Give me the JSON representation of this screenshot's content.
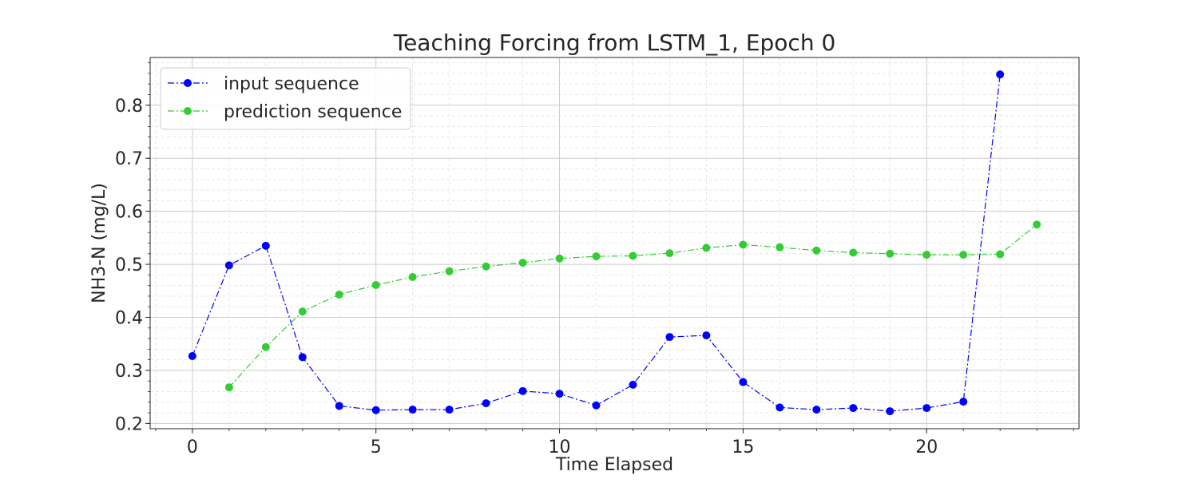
{
  "chart_data": {
    "type": "line",
    "title": "Teaching Forcing from LSTM_1, Epoch 0",
    "xlabel": "Time Elapsed",
    "ylabel": "NH3-N (mg/L)",
    "xlim": [
      -1.15,
      24.15
    ],
    "ylim": [
      0.19,
      0.89
    ],
    "x_ticks": [
      0,
      5,
      10,
      15,
      20
    ],
    "y_ticks": [
      0.2,
      0.3,
      0.4,
      0.5,
      0.6,
      0.7,
      0.8
    ],
    "x_tick_labels": [
      "0",
      "5",
      "10",
      "15",
      "20"
    ],
    "y_tick_labels": [
      "0.2",
      "0.3",
      "0.4",
      "0.5",
      "0.6",
      "0.7",
      "0.8"
    ],
    "grid": true,
    "minor_grid": true,
    "legend_position": "top-left",
    "series": [
      {
        "name": "input sequence",
        "color": "#0000ff",
        "line_style": "dashdot",
        "marker": "circle",
        "x": [
          0,
          1,
          2,
          3,
          4,
          5,
          6,
          7,
          8,
          9,
          10,
          11,
          12,
          13,
          14,
          15,
          16,
          17,
          18,
          19,
          20,
          21,
          22
        ],
        "y": [
          0.327,
          0.498,
          0.535,
          0.325,
          0.233,
          0.225,
          0.226,
          0.226,
          0.238,
          0.261,
          0.256,
          0.234,
          0.273,
          0.363,
          0.366,
          0.278,
          0.23,
          0.226,
          0.229,
          0.223,
          0.229,
          0.241,
          0.858
        ]
      },
      {
        "name": "prediction sequence",
        "color": "#32cd32",
        "line_style": "dashdot",
        "marker": "circle",
        "x": [
          1,
          2,
          3,
          4,
          5,
          6,
          7,
          8,
          9,
          10,
          11,
          12,
          13,
          14,
          15,
          16,
          17,
          18,
          19,
          20,
          21,
          22,
          23
        ],
        "y": [
          0.268,
          0.344,
          0.411,
          0.443,
          0.461,
          0.476,
          0.487,
          0.496,
          0.503,
          0.511,
          0.515,
          0.516,
          0.521,
          0.531,
          0.537,
          0.532,
          0.526,
          0.522,
          0.52,
          0.518,
          0.518,
          0.519,
          0.575
        ]
      }
    ]
  }
}
